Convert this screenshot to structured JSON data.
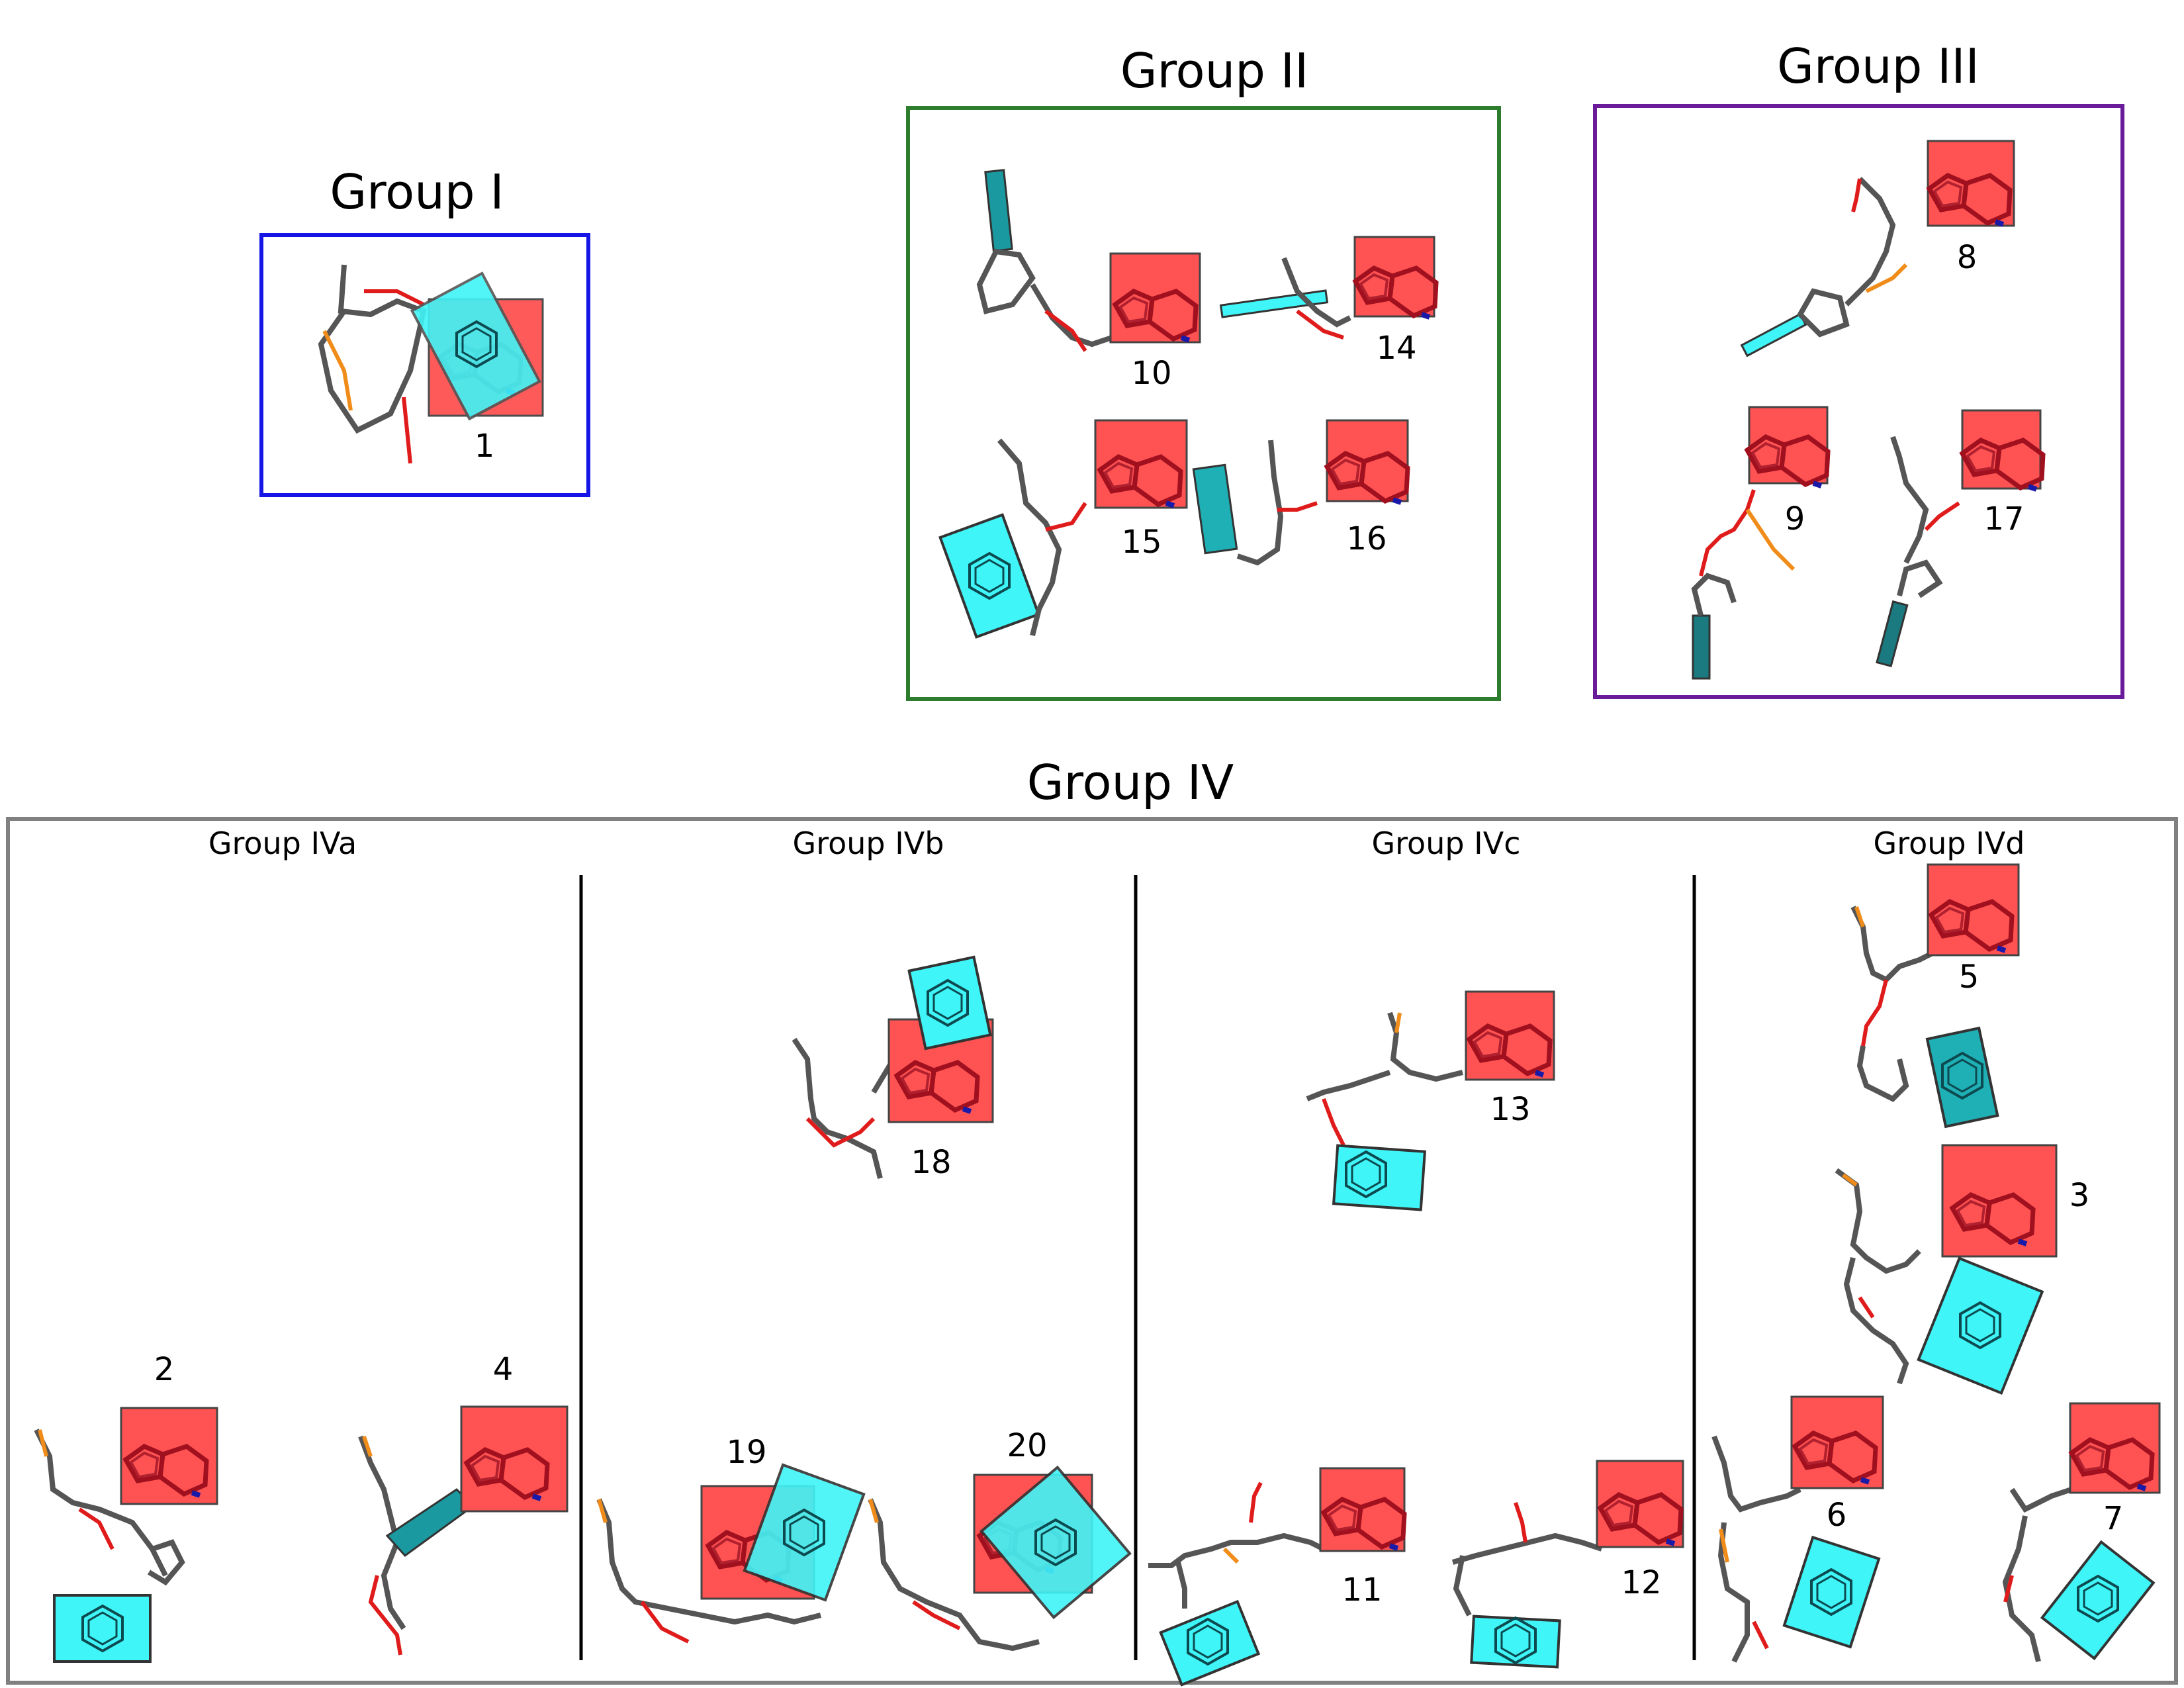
{
  "colors": {
    "group_i": "#1515e6",
    "group_ii": "#2e7d2e",
    "group_iii": "#6a1b9a",
    "group_iv": "#808080",
    "red_box": "#ff5252",
    "cyan_box": "#3ff5f8",
    "stick_carbon": "#555555",
    "stick_oxygen": "#e01b1b",
    "stick_phosphorus": "#f08c1a",
    "stick_nitrogen": "#1a1aa8"
  },
  "groups": {
    "group_i": {
      "title": "Group I"
    },
    "group_ii": {
      "title": "Group II"
    },
    "group_iii": {
      "title": "Group III"
    },
    "group_iv": {
      "title": "Group IV",
      "subgroups": [
        "Group IVa",
        "Group IVb",
        "Group IVc",
        "Group IVd"
      ]
    }
  },
  "structures": [
    {
      "id": "s1",
      "label": "1",
      "group": "Group I",
      "cyan": "stacked"
    },
    {
      "id": "s10",
      "label": "10",
      "group": "Group II",
      "cyan": "upright"
    },
    {
      "id": "s14",
      "label": "14",
      "group": "Group II",
      "cyan": "flat"
    },
    {
      "id": "s15",
      "label": "15",
      "group": "Group II",
      "cyan": "tilted"
    },
    {
      "id": "s16",
      "label": "16",
      "group": "Group II",
      "cyan": "upright"
    },
    {
      "id": "s8",
      "label": "8",
      "group": "Group III",
      "cyan": "flat"
    },
    {
      "id": "s9",
      "label": "9",
      "group": "Group III",
      "cyan": "upright"
    },
    {
      "id": "s17",
      "label": "17",
      "group": "Group III",
      "cyan": "upright"
    },
    {
      "id": "s2",
      "label": "2",
      "group": "Group IVa",
      "cyan": "face"
    },
    {
      "id": "s4",
      "label": "4",
      "group": "Group IVa",
      "cyan": "edge"
    },
    {
      "id": "s18",
      "label": "18",
      "group": "Group IVb",
      "cyan": "tilted"
    },
    {
      "id": "s19",
      "label": "19",
      "group": "Group IVb",
      "cyan": "tilted"
    },
    {
      "id": "s20",
      "label": "20",
      "group": "Group IVb",
      "cyan": "tilted"
    },
    {
      "id": "s13",
      "label": "13",
      "group": "Group IVc",
      "cyan": "face"
    },
    {
      "id": "s11",
      "label": "11",
      "group": "Group IVc",
      "cyan": "tilted"
    },
    {
      "id": "s12",
      "label": "12",
      "group": "Group IVc",
      "cyan": "face"
    },
    {
      "id": "s5",
      "label": "5",
      "group": "Group IVd",
      "cyan": "tilted"
    },
    {
      "id": "s3",
      "label": "3",
      "group": "Group IVd",
      "cyan": "tilted"
    },
    {
      "id": "s6",
      "label": "6",
      "group": "Group IVd",
      "cyan": "tilted"
    },
    {
      "id": "s7",
      "label": "7",
      "group": "Group IVd",
      "cyan": "tilted"
    }
  ]
}
